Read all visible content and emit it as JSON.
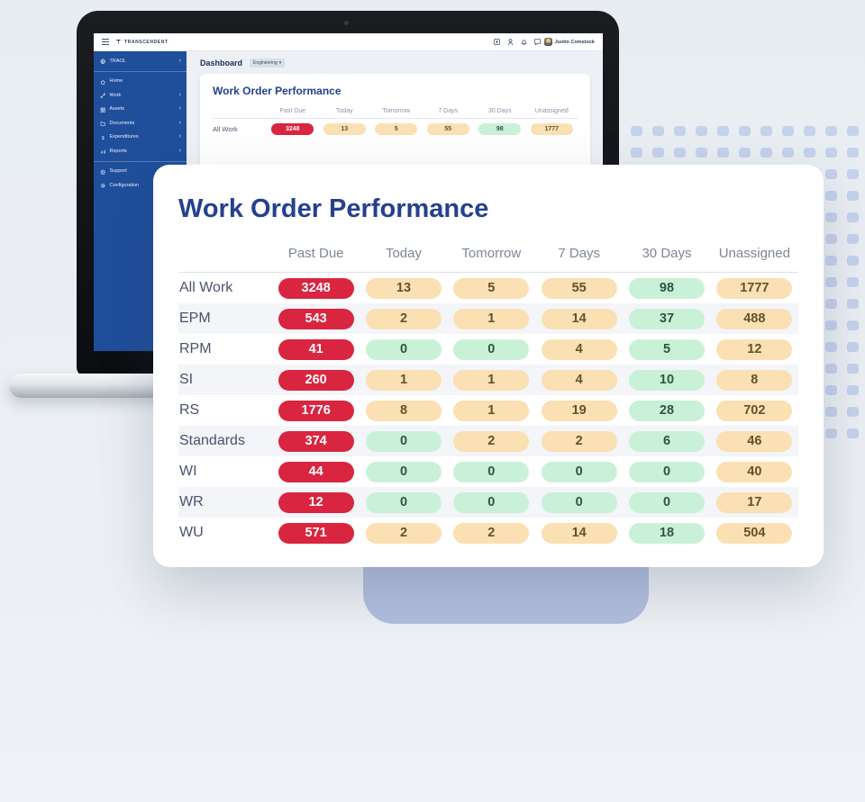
{
  "colors": {
    "page_bg": "#e9edf2",
    "dots": "#c5d2ec",
    "deco_panel": "#b6c2e1",
    "sidebar_blue": "#1f4e9b",
    "title_blue": "#24418f",
    "red_bg": "#d92540",
    "red_text": "#ffffff",
    "tan_bg": "#fae0b2",
    "tan_text": "#63522a",
    "green_bg": "#c9f1d7",
    "green_text": "#2f5640"
  },
  "laptop": {
    "topbar": {
      "brand": "TRANSCENDENT",
      "user_name": "Justin Comstock",
      "icons": [
        {
          "name": "add-icon"
        },
        {
          "name": "profile-badge-icon"
        },
        {
          "name": "notifications-bell-icon"
        },
        {
          "name": "messages-icon"
        }
      ]
    },
    "sidebar": {
      "sections": [
        {
          "items": [
            {
              "label": "TRAOL",
              "icon": "globe",
              "chevron": true
            }
          ]
        },
        {
          "items": [
            {
              "label": "Home",
              "icon": "home",
              "chevron": false
            },
            {
              "label": "Work",
              "icon": "wrench",
              "chevron": true
            },
            {
              "label": "Assets",
              "icon": "assets",
              "chevron": true
            },
            {
              "label": "Documents",
              "icon": "folder",
              "chevron": true
            },
            {
              "label": "Expenditures",
              "icon": "dollar",
              "chevron": true
            },
            {
              "label": "Reports",
              "icon": "chart",
              "chevron": true
            }
          ]
        },
        {
          "items": [
            {
              "label": "Support",
              "icon": "support",
              "chevron": false
            },
            {
              "label": "Configuration",
              "icon": "gear",
              "chevron": false
            }
          ]
        }
      ]
    },
    "page_header": {
      "title": "Dashboard",
      "filter_label": "Engineering",
      "filter_caret": "▾"
    },
    "mini_card": {
      "title": "Work Order Performance",
      "columns": [
        "Past Due",
        "Today",
        "Tomorrow",
        "7 Days",
        "30 Days",
        "Unassigned"
      ],
      "rows": [
        {
          "label": "All Work",
          "cells": [
            {
              "v": "3248",
              "c": "red"
            },
            {
              "v": "13",
              "c": "tan"
            },
            {
              "v": "5",
              "c": "tan"
            },
            {
              "v": "55",
              "c": "tan"
            },
            {
              "v": "98",
              "c": "green"
            },
            {
              "v": "1777",
              "c": "tan"
            }
          ]
        }
      ]
    }
  },
  "card": {
    "title": "Work Order Performance",
    "columns": [
      "Past Due",
      "Today",
      "Tomorrow",
      "7 Days",
      "30 Days",
      "Unassigned"
    ],
    "rows": [
      {
        "label": "All Work",
        "cells": [
          {
            "v": "3248",
            "c": "red"
          },
          {
            "v": "13",
            "c": "tan"
          },
          {
            "v": "5",
            "c": "tan"
          },
          {
            "v": "55",
            "c": "tan"
          },
          {
            "v": "98",
            "c": "green"
          },
          {
            "v": "1777",
            "c": "tan"
          }
        ]
      },
      {
        "label": "EPM",
        "cells": [
          {
            "v": "543",
            "c": "red"
          },
          {
            "v": "2",
            "c": "tan"
          },
          {
            "v": "1",
            "c": "tan"
          },
          {
            "v": "14",
            "c": "tan"
          },
          {
            "v": "37",
            "c": "green"
          },
          {
            "v": "488",
            "c": "tan"
          }
        ]
      },
      {
        "label": "RPM",
        "cells": [
          {
            "v": "41",
            "c": "red"
          },
          {
            "v": "0",
            "c": "green"
          },
          {
            "v": "0",
            "c": "green"
          },
          {
            "v": "4",
            "c": "tan"
          },
          {
            "v": "5",
            "c": "green"
          },
          {
            "v": "12",
            "c": "tan"
          }
        ]
      },
      {
        "label": "SI",
        "cells": [
          {
            "v": "260",
            "c": "red"
          },
          {
            "v": "1",
            "c": "tan"
          },
          {
            "v": "1",
            "c": "tan"
          },
          {
            "v": "4",
            "c": "tan"
          },
          {
            "v": "10",
            "c": "green"
          },
          {
            "v": "8",
            "c": "tan"
          }
        ]
      },
      {
        "label": "RS",
        "cells": [
          {
            "v": "1776",
            "c": "red"
          },
          {
            "v": "8",
            "c": "tan"
          },
          {
            "v": "1",
            "c": "tan"
          },
          {
            "v": "19",
            "c": "tan"
          },
          {
            "v": "28",
            "c": "green"
          },
          {
            "v": "702",
            "c": "tan"
          }
        ]
      },
      {
        "label": "Standards",
        "cells": [
          {
            "v": "374",
            "c": "red"
          },
          {
            "v": "0",
            "c": "green"
          },
          {
            "v": "2",
            "c": "tan"
          },
          {
            "v": "2",
            "c": "tan"
          },
          {
            "v": "6",
            "c": "green"
          },
          {
            "v": "46",
            "c": "tan"
          }
        ]
      },
      {
        "label": "WI",
        "cells": [
          {
            "v": "44",
            "c": "red"
          },
          {
            "v": "0",
            "c": "green"
          },
          {
            "v": "0",
            "c": "green"
          },
          {
            "v": "0",
            "c": "green"
          },
          {
            "v": "0",
            "c": "green"
          },
          {
            "v": "40",
            "c": "tan"
          }
        ]
      },
      {
        "label": "WR",
        "cells": [
          {
            "v": "12",
            "c": "red"
          },
          {
            "v": "0",
            "c": "green"
          },
          {
            "v": "0",
            "c": "green"
          },
          {
            "v": "0",
            "c": "green"
          },
          {
            "v": "0",
            "c": "green"
          },
          {
            "v": "17",
            "c": "tan"
          }
        ]
      },
      {
        "label": "WU",
        "cells": [
          {
            "v": "571",
            "c": "red"
          },
          {
            "v": "2",
            "c": "tan"
          },
          {
            "v": "2",
            "c": "tan"
          },
          {
            "v": "14",
            "c": "tan"
          },
          {
            "v": "18",
            "c": "green"
          },
          {
            "v": "504",
            "c": "tan"
          }
        ]
      }
    ]
  }
}
